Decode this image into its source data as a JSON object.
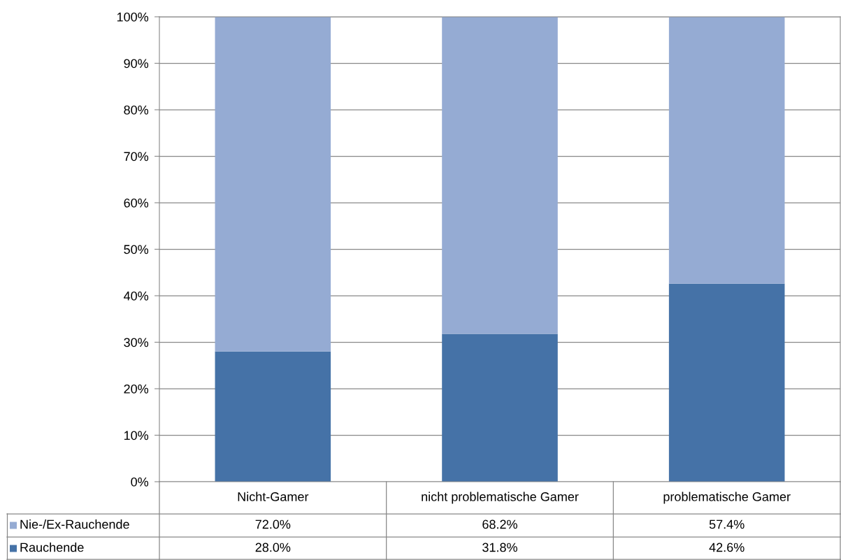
{
  "chart_data": {
    "type": "bar",
    "stacked": true,
    "categories": [
      "Nicht-Gamer",
      "nicht problematische Gamer",
      "problematische Gamer"
    ],
    "series": [
      {
        "name": "Rauchende",
        "color": "#4572a7",
        "values": [
          28.0,
          31.8,
          42.6
        ],
        "value_labels": [
          "28.0%",
          "31.8%",
          "42.6%"
        ]
      },
      {
        "name": "Nie-/Ex-Rauchende",
        "color": "#95abd3",
        "values": [
          72.0,
          68.2,
          57.4
        ],
        "value_labels": [
          "72.0%",
          "68.2%",
          "57.4%"
        ]
      }
    ],
    "ylim": [
      0,
      100
    ],
    "yticks": [
      {
        "value": 0,
        "label": "0%"
      },
      {
        "value": 10,
        "label": "10%"
      },
      {
        "value": 20,
        "label": "20%"
      },
      {
        "value": 30,
        "label": "30%"
      },
      {
        "value": 40,
        "label": "40%"
      },
      {
        "value": 50,
        "label": "50%"
      },
      {
        "value": 60,
        "label": "60%"
      },
      {
        "value": 70,
        "label": "70%"
      },
      {
        "value": 80,
        "label": "80%"
      },
      {
        "value": 90,
        "label": "90%"
      },
      {
        "value": 100,
        "label": "100%"
      }
    ],
    "grid": "y",
    "legend": "bottom"
  }
}
